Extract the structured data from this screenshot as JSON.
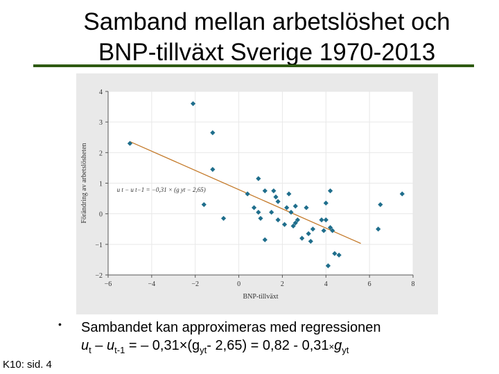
{
  "slide": {
    "title_line1": "Samband mellan arbetslöshet och",
    "title_line2": "BNP-tillväxt Sverige 1970-2013",
    "bullet": "•",
    "text_line1": "Sambandet kan approximeras med regressionen",
    "eq_u1": "u",
    "eq_t1": "t",
    "eq_minus": " – ",
    "eq_u2": "u",
    "eq_t2": "t-1",
    "eq_mid": " = – 0,31×(g",
    "eq_y1": "y",
    "eq_t3": "t",
    "eq_end": "- 2,65) = 0,82 - 0,31",
    "eq_times": "×",
    "eq_g": "g",
    "eq_y2": "y",
    "eq_t4": "t",
    "footer": "K10: sid. 4",
    "colors": {
      "title_rule": "#2e5a12",
      "points": "#1f6e8c",
      "regression_line": "#c47a2a",
      "panel_bg": "#e9e9e9"
    }
  },
  "chart_data": {
    "type": "scatter",
    "xlabel": "BNP-tillväxt",
    "ylabel": "Förändring av arbetslösheten",
    "xlim": [
      -6,
      8
    ],
    "ylim": [
      -2,
      4
    ],
    "xticks": [
      -6,
      -4,
      -2,
      0,
      2,
      4,
      6,
      8
    ],
    "yticks": [
      4,
      3,
      2,
      1,
      0,
      -1,
      -2
    ],
    "x_tick_labels": [
      "−6",
      "−4",
      "−2",
      "0",
      "2",
      "4",
      "6",
      "8"
    ],
    "y_tick_labels": [
      "4",
      "3",
      "2",
      "1",
      "0",
      "−1",
      "−2"
    ],
    "grid": true,
    "annotation": "u t − u t−1 = −0,31 × (g yt − 2,65)",
    "regression_line": {
      "x": [
        -5.0,
        5.6
      ],
      "y": [
        2.36,
        -0.97
      ]
    },
    "points": [
      {
        "x": -5.0,
        "y": 2.3
      },
      {
        "x": -2.1,
        "y": 3.6
      },
      {
        "x": -1.2,
        "y": 2.65
      },
      {
        "x": -1.2,
        "y": 1.45
      },
      {
        "x": -1.6,
        "y": 0.3
      },
      {
        "x": -0.7,
        "y": -0.15
      },
      {
        "x": 0.4,
        "y": 0.65
      },
      {
        "x": 0.7,
        "y": 0.2
      },
      {
        "x": 0.9,
        "y": 1.15
      },
      {
        "x": 0.9,
        "y": 0.05
      },
      {
        "x": 1.0,
        "y": -0.15
      },
      {
        "x": 1.2,
        "y": 0.75
      },
      {
        "x": 1.2,
        "y": -0.85
      },
      {
        "x": 1.5,
        "y": 0.05
      },
      {
        "x": 1.6,
        "y": 0.75
      },
      {
        "x": 1.7,
        "y": 0.55
      },
      {
        "x": 1.8,
        "y": 0.4
      },
      {
        "x": 1.8,
        "y": -0.2
      },
      {
        "x": 2.1,
        "y": -0.35
      },
      {
        "x": 2.2,
        "y": 0.2
      },
      {
        "x": 2.3,
        "y": 0.65
      },
      {
        "x": 2.4,
        "y": 0.05
      },
      {
        "x": 2.5,
        "y": -0.4
      },
      {
        "x": 2.6,
        "y": 0.25
      },
      {
        "x": 2.6,
        "y": -0.3
      },
      {
        "x": 2.7,
        "y": -0.2
      },
      {
        "x": 2.9,
        "y": -0.8
      },
      {
        "x": 3.1,
        "y": 0.2
      },
      {
        "x": 3.2,
        "y": -0.65
      },
      {
        "x": 3.3,
        "y": -0.9
      },
      {
        "x": 3.4,
        "y": -0.5
      },
      {
        "x": 3.8,
        "y": -0.2
      },
      {
        "x": 3.9,
        "y": -0.55
      },
      {
        "x": 4.0,
        "y": 0.35
      },
      {
        "x": 4.0,
        "y": -0.2
      },
      {
        "x": 4.1,
        "y": -1.7
      },
      {
        "x": 4.2,
        "y": 0.75
      },
      {
        "x": 4.2,
        "y": -0.45
      },
      {
        "x": 4.3,
        "y": -0.55
      },
      {
        "x": 4.4,
        "y": -1.3
      },
      {
        "x": 4.6,
        "y": -1.35
      },
      {
        "x": 6.5,
        "y": 0.3
      },
      {
        "x": 6.4,
        "y": -0.5
      },
      {
        "x": 7.5,
        "y": 0.65
      }
    ]
  }
}
